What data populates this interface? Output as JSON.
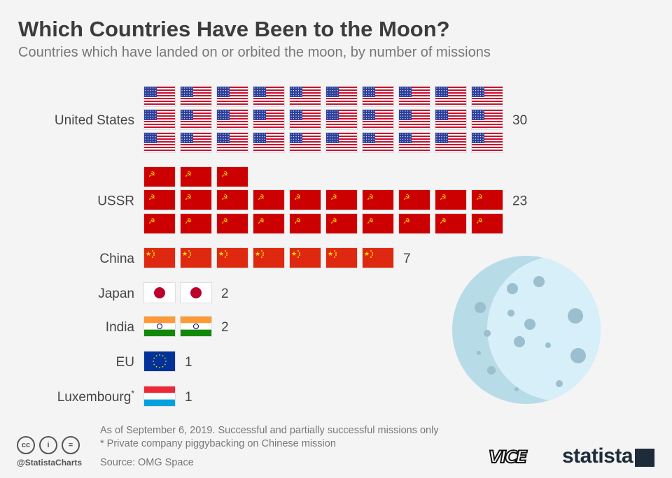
{
  "title": "Which Countries Have Been to the Moon?",
  "subtitle": "Countries which have landed on or orbited the moon, by number of missions",
  "chart_data": {
    "type": "pictogram",
    "categories": [
      "United States",
      "USSR",
      "China",
      "Japan",
      "India",
      "EU",
      "Luxembourg*"
    ],
    "values": [
      30,
      23,
      7,
      2,
      2,
      1,
      1
    ],
    "value_labels": [
      "30",
      "23",
      "7",
      "2",
      "2",
      "1",
      "1"
    ],
    "unit": "one flag = one mission",
    "flags": [
      "us",
      "ussr",
      "china",
      "japan",
      "india",
      "eu",
      "luxembourg"
    ]
  },
  "footer": {
    "note": "As of September 6, 2019. Successful and partially successful missions only",
    "footnote": "* Private company piggybacking on Chinese mission",
    "source": "Source: OMG Space",
    "handle": "@StatistaCharts",
    "brand": "statista",
    "partner": "VICE"
  },
  "colors": {
    "moon": "#b8dbe8",
    "moon_light": "#d6eff8",
    "crater": "#9cbfcf"
  }
}
